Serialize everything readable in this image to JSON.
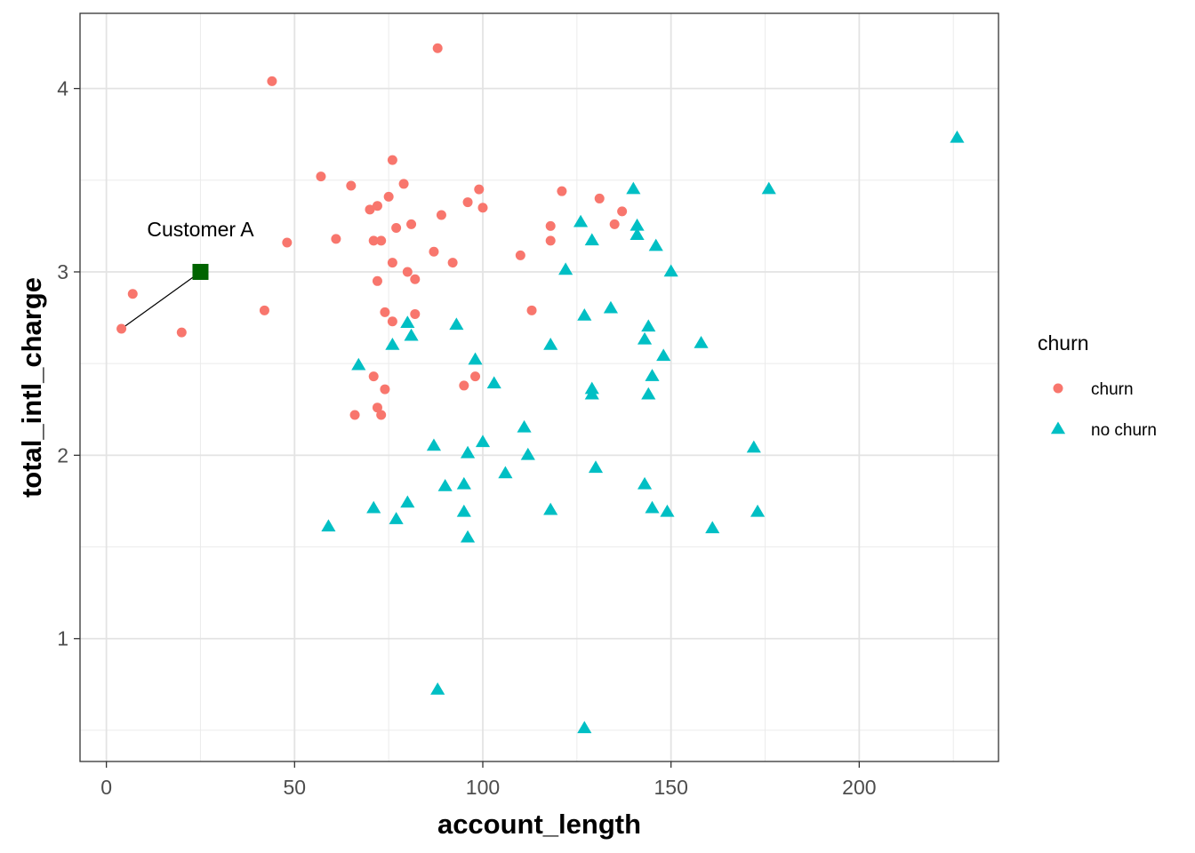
{
  "chart_data": {
    "type": "scatter",
    "xlabel": "account_length",
    "ylabel": "total_intl_charge",
    "xlim": [
      -7,
      237
    ],
    "ylim": [
      0.33,
      4.41
    ],
    "x_ticks": [
      0,
      50,
      100,
      150,
      200
    ],
    "y_ticks": [
      1,
      2,
      3,
      4
    ],
    "grid": true,
    "legend": {
      "title": "churn",
      "position": "right",
      "entries": [
        {
          "label": "churn",
          "shape": "circle",
          "color": "#F8766D"
        },
        {
          "label": "no churn",
          "shape": "triangle",
          "color": "#00BFC4"
        }
      ]
    },
    "series": [
      {
        "name": "churn",
        "color": "#F8766D",
        "shape": "circle",
        "points": [
          [
            4,
            2.69
          ],
          [
            7,
            2.88
          ],
          [
            20,
            2.67
          ],
          [
            42,
            2.79
          ],
          [
            44,
            4.04
          ],
          [
            48,
            3.16
          ],
          [
            57,
            3.52
          ],
          [
            61,
            3.18
          ],
          [
            65,
            3.47
          ],
          [
            66,
            2.22
          ],
          [
            70,
            3.34
          ],
          [
            71,
            3.17
          ],
          [
            71,
            2.43
          ],
          [
            72,
            3.36
          ],
          [
            72,
            2.26
          ],
          [
            72,
            2.95
          ],
          [
            73,
            3.17
          ],
          [
            73,
            2.22
          ],
          [
            74,
            2.78
          ],
          [
            74,
            2.36
          ],
          [
            75,
            3.41
          ],
          [
            76,
            2.73
          ],
          [
            76,
            3.61
          ],
          [
            76,
            3.05
          ],
          [
            77,
            3.24
          ],
          [
            79,
            3.48
          ],
          [
            80,
            3.0
          ],
          [
            81,
            3.26
          ],
          [
            82,
            2.96
          ],
          [
            82,
            2.77
          ],
          [
            87,
            3.11
          ],
          [
            88,
            4.22
          ],
          [
            89,
            3.31
          ],
          [
            92,
            3.05
          ],
          [
            95,
            2.38
          ],
          [
            96,
            3.38
          ],
          [
            98,
            2.43
          ],
          [
            99,
            3.45
          ],
          [
            100,
            3.35
          ],
          [
            110,
            3.09
          ],
          [
            113,
            2.79
          ],
          [
            118,
            3.25
          ],
          [
            118,
            3.17
          ],
          [
            121,
            3.44
          ],
          [
            131,
            3.4
          ],
          [
            135,
            3.26
          ],
          [
            137,
            3.33
          ]
        ]
      },
      {
        "name": "no churn",
        "color": "#00BFC4",
        "shape": "triangle",
        "points": [
          [
            59,
            1.61
          ],
          [
            67,
            2.49
          ],
          [
            71,
            1.71
          ],
          [
            76,
            2.6
          ],
          [
            77,
            1.65
          ],
          [
            80,
            2.72
          ],
          [
            80,
            1.74
          ],
          [
            81,
            2.65
          ],
          [
            87,
            2.05
          ],
          [
            88,
            0.72
          ],
          [
            90,
            1.83
          ],
          [
            93,
            2.71
          ],
          [
            95,
            1.84
          ],
          [
            95,
            1.69
          ],
          [
            96,
            2.01
          ],
          [
            96,
            1.55
          ],
          [
            98,
            2.52
          ],
          [
            100,
            2.07
          ],
          [
            103,
            2.39
          ],
          [
            106,
            1.9
          ],
          [
            111,
            2.15
          ],
          [
            112,
            2.0
          ],
          [
            118,
            2.6
          ],
          [
            118,
            1.7
          ],
          [
            122,
            3.01
          ],
          [
            126,
            3.27
          ],
          [
            127,
            2.76
          ],
          [
            127,
            0.51
          ],
          [
            129,
            2.36
          ],
          [
            129,
            2.33
          ],
          [
            129,
            3.17
          ],
          [
            130,
            1.93
          ],
          [
            134,
            2.8
          ],
          [
            140,
            3.45
          ],
          [
            141,
            3.25
          ],
          [
            141,
            3.2
          ],
          [
            143,
            2.63
          ],
          [
            143,
            1.84
          ],
          [
            144,
            2.7
          ],
          [
            144,
            2.33
          ],
          [
            145,
            1.71
          ],
          [
            145,
            2.43
          ],
          [
            146,
            3.14
          ],
          [
            148,
            2.54
          ],
          [
            149,
            1.69
          ],
          [
            150,
            3.0
          ],
          [
            158,
            2.61
          ],
          [
            161,
            1.6
          ],
          [
            172,
            2.04
          ],
          [
            173,
            1.69
          ],
          [
            176,
            3.45
          ],
          [
            226,
            3.73
          ]
        ]
      }
    ],
    "annotations": [
      {
        "text": "Customer A",
        "point": [
          25,
          3.0
        ],
        "marker": "square",
        "marker_color": "#006400",
        "connector_to": [
          4,
          2.69
        ]
      }
    ]
  }
}
